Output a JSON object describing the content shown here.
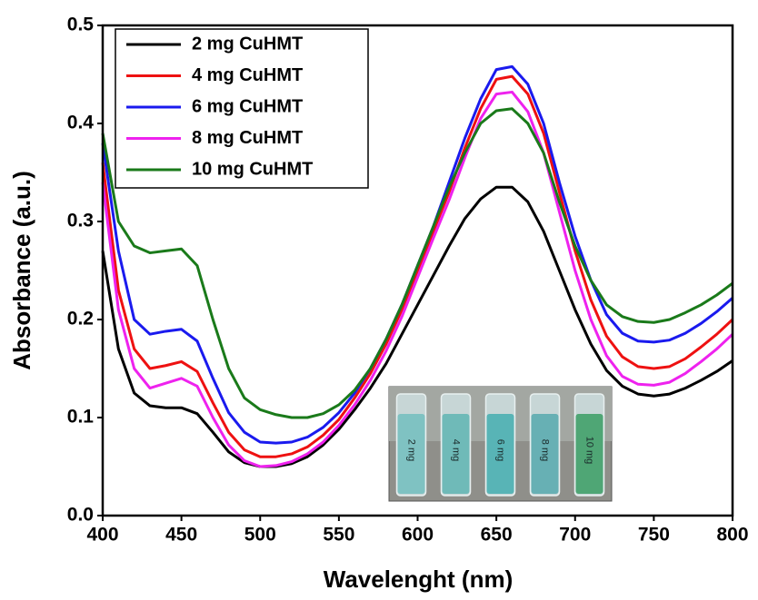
{
  "chart_data": {
    "type": "line",
    "xlabel": "Wavelenght (nm)",
    "ylabel": "Absorbance (a.u.)",
    "x": [
      400,
      410,
      420,
      430,
      440,
      450,
      460,
      470,
      480,
      490,
      500,
      510,
      520,
      530,
      540,
      550,
      560,
      570,
      580,
      590,
      600,
      610,
      620,
      630,
      640,
      650,
      660,
      670,
      680,
      690,
      700,
      710,
      720,
      730,
      740,
      750,
      760,
      770,
      780,
      790,
      800
    ],
    "series": [
      {
        "name": "2 mg CuHMT",
        "color": "#000000",
        "values": [
          0.27,
          0.17,
          0.125,
          0.112,
          0.11,
          0.11,
          0.104,
          0.085,
          0.065,
          0.054,
          0.05,
          0.05,
          0.053,
          0.06,
          0.072,
          0.088,
          0.108,
          0.13,
          0.155,
          0.185,
          0.215,
          0.245,
          0.275,
          0.303,
          0.323,
          0.335,
          0.335,
          0.32,
          0.29,
          0.25,
          0.21,
          0.175,
          0.148,
          0.132,
          0.124,
          0.122,
          0.124,
          0.13,
          0.138,
          0.147,
          0.158
        ]
      },
      {
        "name": "4 mg CuHMT",
        "color": "#ee1111",
        "values": [
          0.36,
          0.23,
          0.17,
          0.15,
          0.153,
          0.157,
          0.147,
          0.115,
          0.085,
          0.067,
          0.06,
          0.06,
          0.063,
          0.07,
          0.082,
          0.098,
          0.12,
          0.145,
          0.175,
          0.21,
          0.25,
          0.29,
          0.33,
          0.375,
          0.415,
          0.445,
          0.448,
          0.43,
          0.39,
          0.33,
          0.27,
          0.22,
          0.183,
          0.162,
          0.152,
          0.15,
          0.152,
          0.16,
          0.172,
          0.185,
          0.2
        ]
      },
      {
        "name": "6 mg CuHMT",
        "color": "#1a1aee",
        "values": [
          0.38,
          0.27,
          0.2,
          0.185,
          0.188,
          0.19,
          0.178,
          0.14,
          0.105,
          0.085,
          0.075,
          0.074,
          0.075,
          0.08,
          0.09,
          0.105,
          0.125,
          0.15,
          0.18,
          0.215,
          0.255,
          0.295,
          0.34,
          0.385,
          0.425,
          0.455,
          0.458,
          0.44,
          0.4,
          0.34,
          0.285,
          0.24,
          0.205,
          0.186,
          0.178,
          0.177,
          0.179,
          0.186,
          0.196,
          0.208,
          0.222
        ]
      },
      {
        "name": "8 mg CuHMT",
        "color": "#ee22ee",
        "values": [
          0.34,
          0.21,
          0.15,
          0.13,
          0.135,
          0.14,
          0.132,
          0.1,
          0.072,
          0.056,
          0.05,
          0.051,
          0.055,
          0.063,
          0.075,
          0.092,
          0.113,
          0.138,
          0.168,
          0.203,
          0.243,
          0.283,
          0.322,
          0.365,
          0.405,
          0.43,
          0.432,
          0.412,
          0.37,
          0.31,
          0.25,
          0.2,
          0.163,
          0.142,
          0.134,
          0.133,
          0.136,
          0.145,
          0.157,
          0.17,
          0.185
        ]
      },
      {
        "name": "10 mg CuHMT",
        "color": "#1a7a1a",
        "values": [
          0.39,
          0.3,
          0.275,
          0.268,
          0.27,
          0.272,
          0.255,
          0.2,
          0.15,
          0.12,
          0.108,
          0.103,
          0.1,
          0.1,
          0.104,
          0.113,
          0.128,
          0.15,
          0.18,
          0.215,
          0.255,
          0.295,
          0.335,
          0.37,
          0.4,
          0.413,
          0.415,
          0.4,
          0.37,
          0.32,
          0.275,
          0.24,
          0.215,
          0.203,
          0.198,
          0.197,
          0.2,
          0.207,
          0.215,
          0.225,
          0.237
        ]
      }
    ],
    "xlim": [
      400,
      800
    ],
    "xticks": [
      400,
      450,
      500,
      550,
      600,
      650,
      700,
      750,
      800
    ],
    "ylim": [
      0,
      0.5
    ],
    "yticks": [
      {
        "value": 0,
        "label": "0.0"
      },
      0.1,
      0.2,
      0.3,
      0.4,
      0.5
    ],
    "legend": "upper-left",
    "inset_labels": [
      "2 mg",
      "4 mg",
      "6 mg",
      "8 mg",
      "10 mg"
    ]
  }
}
